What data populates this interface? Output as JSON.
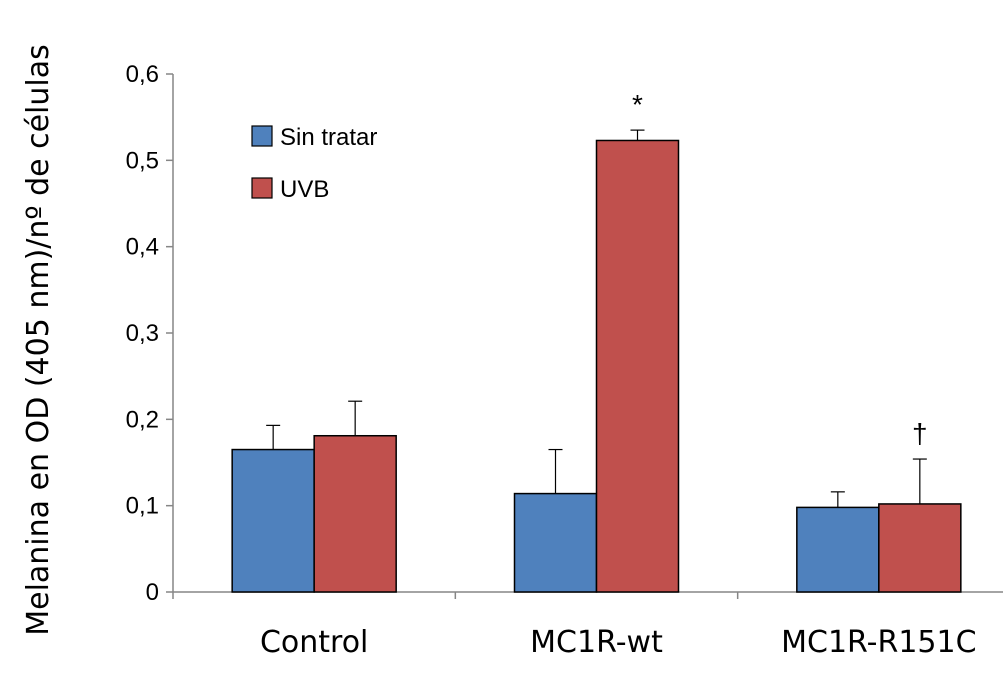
{
  "chart_data": {
    "type": "bar",
    "title": "",
    "xlabel": "",
    "ylabel": "Melanina en OD (405 nm)/nº de células",
    "ylim": [
      0,
      0.6
    ],
    "yticks": [
      0,
      0.1,
      0.2,
      0.3,
      0.4,
      0.5,
      0.6
    ],
    "ytick_labels": [
      "0",
      "0,1",
      "0,2",
      "0,3",
      "0,4",
      "0,5",
      "0,6"
    ],
    "categories": [
      "Control",
      "MC1R-wt",
      "MC1R-R151C"
    ],
    "series": [
      {
        "name": "Sin tratar",
        "color": "#4f81bd",
        "values": [
          0.165,
          0.114,
          0.098
        ],
        "errors": [
          0.028,
          0.051,
          0.018
        ]
      },
      {
        "name": "UVB",
        "color": "#c0504d",
        "values": [
          0.181,
          0.523,
          0.102
        ],
        "errors": [
          0.04,
          0.012,
          0.052
        ]
      }
    ],
    "annotations": [
      {
        "text": "*",
        "category": "MC1R-wt",
        "series": "UVB"
      },
      {
        "text": "†",
        "category": "MC1R-R151C",
        "series": "UVB"
      }
    ],
    "grid": false,
    "legend_position": "top-left"
  }
}
